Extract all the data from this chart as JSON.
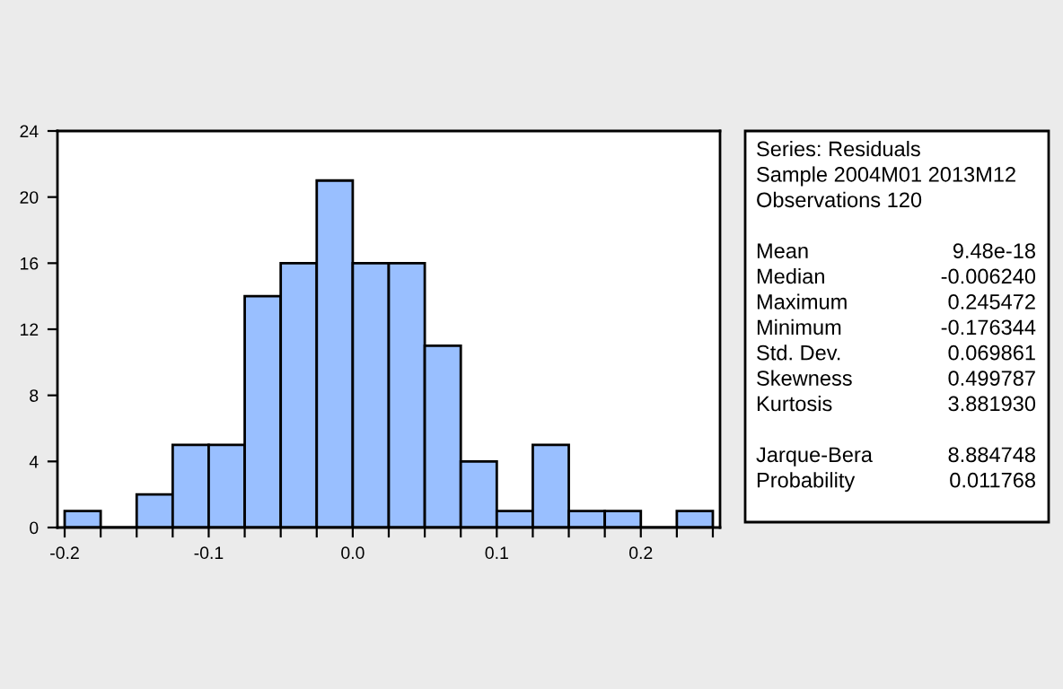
{
  "chart_data": {
    "type": "histogram",
    "bins": [
      -0.2,
      -0.175,
      -0.15,
      -0.125,
      -0.1,
      -0.075,
      -0.05,
      -0.025,
      0.0,
      0.025,
      0.05,
      0.075,
      0.1,
      0.125,
      0.15,
      0.175,
      0.2,
      0.225,
      0.25
    ],
    "values": [
      1,
      0,
      2,
      5,
      5,
      14,
      16,
      21,
      16,
      16,
      11,
      4,
      1,
      5,
      1,
      1,
      0,
      1
    ],
    "color": "#99bfff",
    "xlim": [
      -0.205,
      0.255
    ],
    "xticks": [
      {
        "value": -0.2,
        "label": "-0.2"
      },
      {
        "value": -0.175,
        "label": null
      },
      {
        "value": -0.15,
        "label": null
      },
      {
        "value": -0.125,
        "label": null
      },
      {
        "value": -0.1,
        "label": "-0.1"
      },
      {
        "value": -0.075,
        "label": null
      },
      {
        "value": -0.05,
        "label": null
      },
      {
        "value": -0.025,
        "label": null
      },
      {
        "value": 0.0,
        "label": "0.0"
      },
      {
        "value": 0.025,
        "label": null
      },
      {
        "value": 0.05,
        "label": null
      },
      {
        "value": 0.075,
        "label": null
      },
      {
        "value": 0.1,
        "label": "0.1"
      },
      {
        "value": 0.125,
        "label": null
      },
      {
        "value": 0.15,
        "label": null
      },
      {
        "value": 0.175,
        "label": null
      },
      {
        "value": 0.2,
        "label": "0.2"
      },
      {
        "value": 0.225,
        "label": null
      },
      {
        "value": 0.25,
        "label": null
      }
    ],
    "ylim": [
      0,
      24
    ],
    "yticks": [
      0,
      4,
      8,
      12,
      16,
      20,
      24
    ],
    "grid": false,
    "legend": false,
    "annotations": [
      "Series: Residuals",
      "Sample 2004M01 2013M12",
      "Observations 120",
      "Mean",
      "9.48e-18",
      "Median",
      "-0.006240",
      "Maximum",
      "0.245472",
      "Minimum",
      "-0.176344",
      "Std. Dev.",
      "0.069861",
      "Skewness",
      "0.499787",
      "Kurtosis",
      "3.881930",
      "Jarque-Bera",
      "8.884748",
      "Probability",
      "0.011768"
    ]
  }
}
